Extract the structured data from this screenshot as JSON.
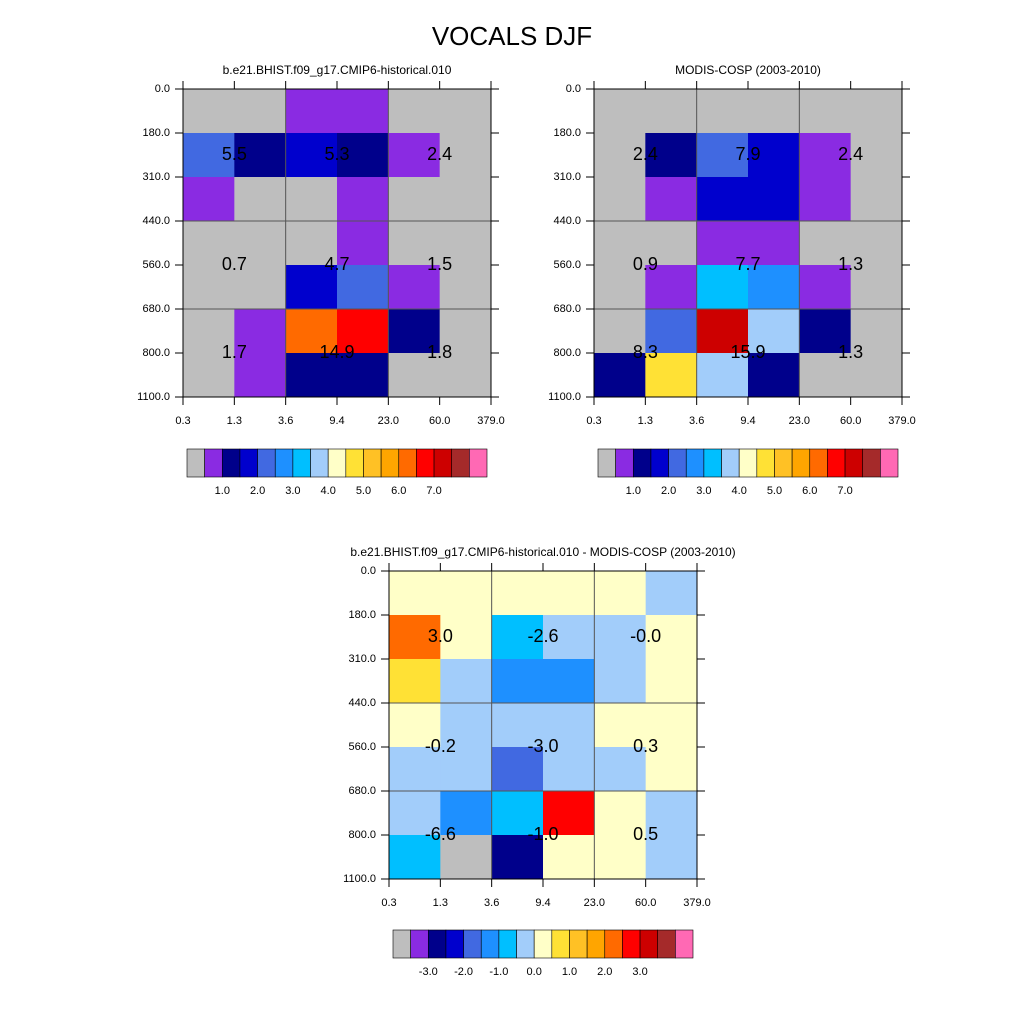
{
  "chart_data": {
    "title": "VOCALS DJF",
    "panels": [
      {
        "type": "heatmap",
        "title": "b.e21.BHIST.f09_g17.CMIP6-historical.010",
        "x_labels": [
          "0.3",
          "1.3",
          "3.6",
          "9.4",
          "23.0",
          "60.0",
          "379.0"
        ],
        "y_labels": [
          "0.0",
          "180.0",
          "310.0",
          "440.0",
          "560.0",
          "680.0",
          "800.0",
          "1100.0"
        ],
        "cells": [
          [
            "#bebebe",
            "#bebebe",
            "#8a2be2",
            "#8a2be2",
            "#bebebe",
            "#bebebe"
          ],
          [
            "#4169e1",
            "#00008b",
            "#0000cd",
            "#00008b",
            "#8a2be2",
            "#bebebe"
          ],
          [
            "#8a2be2",
            "#bebebe",
            "#bebebe",
            "#8a2be2",
            "#bebebe",
            "#bebebe"
          ],
          [
            "#bebebe",
            "#bebebe",
            "#bebebe",
            "#8a2be2",
            "#bebebe",
            "#bebebe"
          ],
          [
            "#bebebe",
            "#bebebe",
            "#0000cd",
            "#4169e1",
            "#8a2be2",
            "#bebebe"
          ],
          [
            "#bebebe",
            "#8a2be2",
            "#ff6a00",
            "#ff0000",
            "#00008b",
            "#bebebe"
          ],
          [
            "#bebebe",
            "#8a2be2",
            "#00008b",
            "#00008b",
            "#bebebe",
            "#bebebe"
          ]
        ],
        "annotations": [
          [
            "5.5",
            "5.3",
            "2.4"
          ],
          [
            "0.7",
            "4.7",
            "1.5"
          ],
          [
            "1.7",
            "14.9",
            "1.8"
          ]
        ],
        "colorbar": {
          "colors": [
            "#bebebe",
            "#8a2be2",
            "#00008b",
            "#0000cd",
            "#4169e1",
            "#1e90ff",
            "#00bfff",
            "#a2cdfa",
            "#ffffc8",
            "#ffe135",
            "#ffc125",
            "#ffa500",
            "#ff6a00",
            "#ff0000",
            "#cd0000",
            "#a52a2a",
            "#ff69b4"
          ],
          "labels": [
            "1.0",
            "2.0",
            "3.0",
            "4.0",
            "5.0",
            "6.0",
            "7.0"
          ]
        }
      },
      {
        "type": "heatmap",
        "title": "MODIS-COSP (2003-2010)",
        "x_labels": [
          "0.3",
          "1.3",
          "3.6",
          "9.4",
          "23.0",
          "60.0",
          "379.0"
        ],
        "y_labels": [
          "0.0",
          "180.0",
          "310.0",
          "440.0",
          "560.0",
          "680.0",
          "800.0",
          "1100.0"
        ],
        "cells": [
          [
            "#bebebe",
            "#bebebe",
            "#bebebe",
            "#bebebe",
            "#bebebe",
            "#bebebe"
          ],
          [
            "#bebebe",
            "#00008b",
            "#4169e1",
            "#0000cd",
            "#8a2be2",
            "#bebebe"
          ],
          [
            "#bebebe",
            "#8a2be2",
            "#0000cd",
            "#0000cd",
            "#8a2be2",
            "#bebebe"
          ],
          [
            "#bebebe",
            "#bebebe",
            "#8a2be2",
            "#8a2be2",
            "#bebebe",
            "#bebebe"
          ],
          [
            "#bebebe",
            "#8a2be2",
            "#00bfff",
            "#1e90ff",
            "#8a2be2",
            "#bebebe"
          ],
          [
            "#bebebe",
            "#4169e1",
            "#cd0000",
            "#a2cdfa",
            "#00008b",
            "#bebebe"
          ],
          [
            "#00008b",
            "#ffe135",
            "#a2cdfa",
            "#00008b",
            "#bebebe",
            "#bebebe"
          ]
        ],
        "annotations": [
          [
            "2.4",
            "7.9",
            "2.4"
          ],
          [
            "0.9",
            "7.7",
            "1.3"
          ],
          [
            "8.3",
            "15.9",
            "1.3"
          ]
        ],
        "colorbar": {
          "colors": [
            "#bebebe",
            "#8a2be2",
            "#00008b",
            "#0000cd",
            "#4169e1",
            "#1e90ff",
            "#00bfff",
            "#a2cdfa",
            "#ffffc8",
            "#ffe135",
            "#ffc125",
            "#ffa500",
            "#ff6a00",
            "#ff0000",
            "#cd0000",
            "#a52a2a",
            "#ff69b4"
          ],
          "labels": [
            "1.0",
            "2.0",
            "3.0",
            "4.0",
            "5.0",
            "6.0",
            "7.0"
          ]
        }
      },
      {
        "type": "heatmap",
        "title": "b.e21.BHIST.f09_g17.CMIP6-historical.010 - MODIS-COSP (2003-2010)",
        "x_labels": [
          "0.3",
          "1.3",
          "3.6",
          "9.4",
          "23.0",
          "60.0",
          "379.0"
        ],
        "y_labels": [
          "0.0",
          "180.0",
          "310.0",
          "440.0",
          "560.0",
          "680.0",
          "800.0",
          "1100.0"
        ],
        "cells": [
          [
            "#ffffc8",
            "#ffffc8",
            "#ffffc8",
            "#ffffc8",
            "#ffffc8",
            "#a2cdfa"
          ],
          [
            "#ff6a00",
            "#ffffc8",
            "#00bfff",
            "#a2cdfa",
            "#a2cdfa",
            "#ffffc8"
          ],
          [
            "#ffe135",
            "#a2cdfa",
            "#1e90ff",
            "#1e90ff",
            "#a2cdfa",
            "#ffffc8"
          ],
          [
            "#ffffc8",
            "#a2cdfa",
            "#a2cdfa",
            "#a2cdfa",
            "#ffffc8",
            "#ffffc8"
          ],
          [
            "#a2cdfa",
            "#a2cdfa",
            "#4169e1",
            "#a2cdfa",
            "#a2cdfa",
            "#ffffc8"
          ],
          [
            "#a2cdfa",
            "#1e90ff",
            "#00bfff",
            "#ff0000",
            "#ffffc8",
            "#a2cdfa"
          ],
          [
            "#00bfff",
            "#bebebe",
            "#00008b",
            "#ffffc8",
            "#ffffc8",
            "#a2cdfa"
          ]
        ],
        "annotations": [
          [
            "3.0",
            "-2.6",
            "-0.0"
          ],
          [
            "-0.2",
            "-3.0",
            "0.3"
          ],
          [
            "-6.6",
            "-1.0",
            "0.5"
          ]
        ],
        "colorbar": {
          "colors": [
            "#bebebe",
            "#8a2be2",
            "#00008b",
            "#0000cd",
            "#4169e1",
            "#1e90ff",
            "#00bfff",
            "#a2cdfa",
            "#ffffc8",
            "#ffe135",
            "#ffc125",
            "#ffa500",
            "#ff6a00",
            "#ff0000",
            "#cd0000",
            "#a52a2a",
            "#ff69b4"
          ],
          "labels": [
            "-3.0",
            "-2.0",
            "-1.0",
            "0.0",
            "1.0",
            "2.0",
            "3.0"
          ]
        }
      }
    ]
  }
}
